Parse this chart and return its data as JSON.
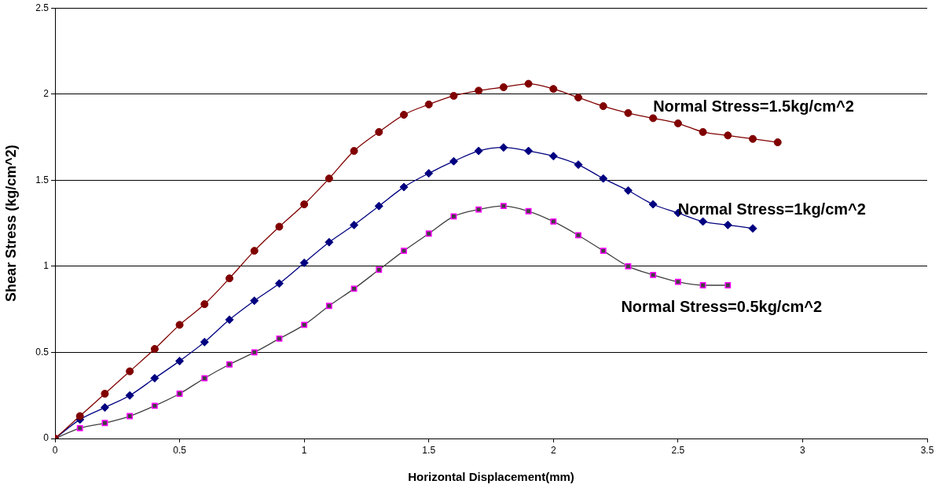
{
  "chart_data": {
    "type": "line",
    "xlabel": "Horizontal Displacement(mm)",
    "ylabel": "Shear Stress (kg/cm^2)",
    "xlim": [
      0,
      3.5
    ],
    "xticks": [
      0,
      0.5,
      1,
      1.5,
      2,
      2.5,
      3,
      3.5
    ],
    "ylim": [
      0,
      2.5
    ],
    "yticks": [
      0,
      0.5,
      1,
      1.5,
      2,
      2.5
    ],
    "grid": "y",
    "legend": false,
    "series": [
      {
        "name": "Normal Stress=1.5kg/cm^2",
        "color": "#800000",
        "marker": "circle",
        "x": [
          0,
          0.1,
          0.2,
          0.3,
          0.4,
          0.5,
          0.6,
          0.7,
          0.8,
          0.9,
          1,
          1.1,
          1.2,
          1.3,
          1.4,
          1.5,
          1.6,
          1.7,
          1.8,
          1.9,
          2,
          2.1,
          2.2,
          2.3,
          2.4,
          2.5,
          2.6,
          2.7,
          2.8,
          2.9
        ],
        "values": [
          0,
          0.13,
          0.26,
          0.39,
          0.52,
          0.66,
          0.78,
          0.93,
          1.09,
          1.23,
          1.36,
          1.51,
          1.67,
          1.78,
          1.88,
          1.94,
          1.99,
          2.02,
          2.04,
          2.06,
          2.03,
          1.98,
          1.93,
          1.89,
          1.86,
          1.83,
          1.78,
          1.76,
          1.74,
          1.72
        ]
      },
      {
        "name": "Normal Stress=1kg/cm^2",
        "color": "#000080",
        "marker": "diamond",
        "x": [
          0,
          0.1,
          0.2,
          0.3,
          0.4,
          0.5,
          0.6,
          0.7,
          0.8,
          0.9,
          1,
          1.1,
          1.2,
          1.3,
          1.4,
          1.5,
          1.6,
          1.7,
          1.8,
          1.9,
          2,
          2.1,
          2.2,
          2.3,
          2.4,
          2.5,
          2.6,
          2.7,
          2.8
        ],
        "values": [
          0,
          0.11,
          0.18,
          0.25,
          0.35,
          0.45,
          0.56,
          0.69,
          0.8,
          0.9,
          1.02,
          1.14,
          1.24,
          1.35,
          1.46,
          1.54,
          1.61,
          1.67,
          1.69,
          1.67,
          1.64,
          1.59,
          1.51,
          1.44,
          1.36,
          1.31,
          1.26,
          1.24,
          1.22
        ]
      },
      {
        "name": "Normal Stress=0.5kg/cm^2",
        "color": "#404040",
        "marker": "square",
        "x": [
          0,
          0.1,
          0.2,
          0.3,
          0.4,
          0.5,
          0.6,
          0.7,
          0.8,
          0.9,
          1,
          1.1,
          1.2,
          1.3,
          1.4,
          1.5,
          1.6,
          1.7,
          1.8,
          1.9,
          2,
          2.1,
          2.2,
          2.3,
          2.4,
          2.5,
          2.6,
          2.7
        ],
        "values": [
          0,
          0.06,
          0.09,
          0.13,
          0.19,
          0.26,
          0.35,
          0.43,
          0.5,
          0.58,
          0.66,
          0.77,
          0.87,
          0.98,
          1.09,
          1.19,
          1.29,
          1.33,
          1.35,
          1.32,
          1.26,
          1.18,
          1.09,
          1,
          0.95,
          0.91,
          0.89,
          0.89
        ]
      }
    ]
  }
}
